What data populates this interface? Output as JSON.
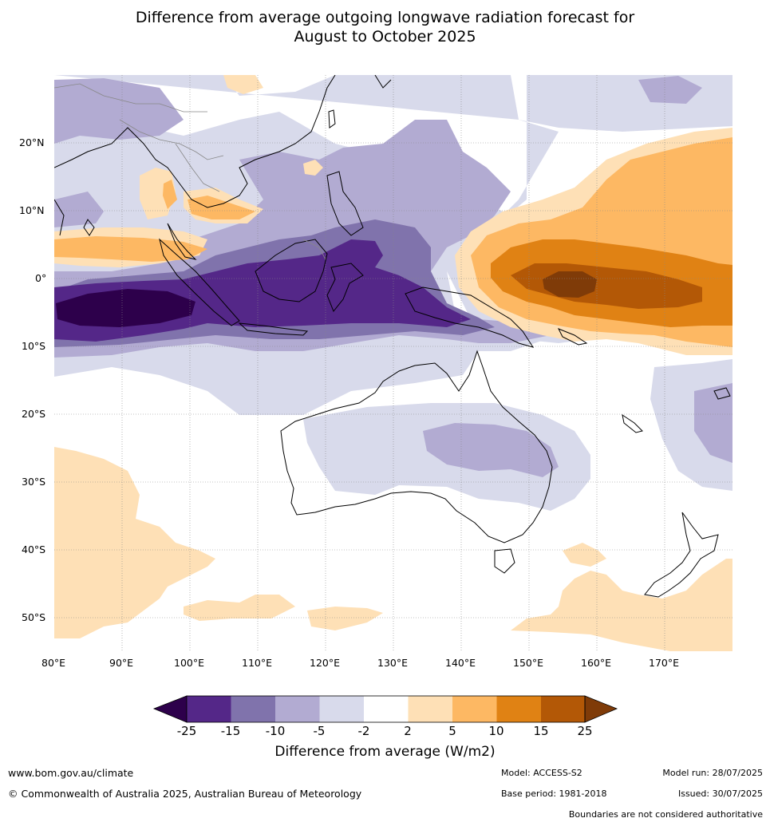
{
  "title_line1": "Difference from average outgoing longwave radiation forecast for",
  "title_line2": "August to October 2025",
  "lat_ticks": [
    "20°N",
    "10°N",
    "0°",
    "10°S",
    "20°S",
    "30°S",
    "40°S",
    "50°S"
  ],
  "lon_ticks": [
    "80°E",
    "90°E",
    "100°E",
    "110°E",
    "120°E",
    "130°E",
    "140°E",
    "150°E",
    "160°E",
    "170°E"
  ],
  "colorbar": {
    "title": "Difference from average (W/m2)",
    "labels": [
      "-25",
      "-15",
      "-10",
      "-5",
      "-2",
      "2",
      "5",
      "10",
      "15",
      "25"
    ],
    "colors": [
      "#2d004b",
      "#542788",
      "#8073ac",
      "#b2abd2",
      "#d8daeb",
      "#ffffff",
      "#fee0b6",
      "#fdb863",
      "#e08214",
      "#b35806",
      "#7f3b08"
    ]
  },
  "footer": {
    "website": "www.bom.gov.au/climate",
    "copyright": "© Commonwealth of Australia 2025, Australian Bureau of Meteorology",
    "model": "Model: ACCESS-S2",
    "base_period": "Base period: 1981-2018",
    "model_run": "Model run: 28/07/2025",
    "issued": "Issued: 30/07/2025",
    "disclaimer": "Boundaries are not considered authoritative"
  }
}
